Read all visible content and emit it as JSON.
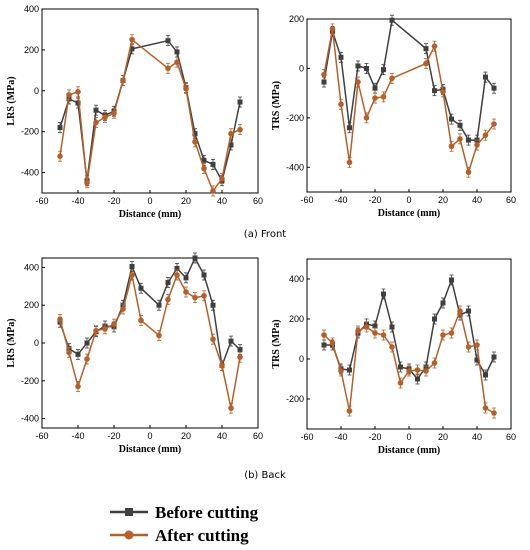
{
  "captions": {
    "front": "(a) Front",
    "back": "(b) Back"
  },
  "legend": {
    "items": [
      {
        "label": "Before cutting",
        "color": "#3f3f3f",
        "marker": "square"
      },
      {
        "label": "After cutting",
        "color": "#b5602a",
        "marker": "circle"
      }
    ]
  },
  "chart_data": [
    {
      "id": "front_lrs",
      "type": "line",
      "xlabel": "Distance (mm)",
      "ylabel": "LRS (MPa)",
      "xlim": [
        -60,
        60
      ],
      "ylim": [
        -500,
        400
      ],
      "xticks": [
        -60,
        -40,
        -20,
        0,
        20,
        40,
        60
      ],
      "yticks": [
        -400,
        -200,
        0,
        200,
        400
      ],
      "series": [
        {
          "name": "Before cutting",
          "color": "#3f3f3f",
          "marker": "square",
          "x": [
            -50,
            -45,
            -40,
            -35,
            -30,
            -25,
            -20,
            -15,
            -10,
            10,
            15,
            20,
            25,
            30,
            35,
            40,
            45,
            50
          ],
          "y": [
            -180,
            -40,
            -60,
            -440,
            -95,
            -120,
            -100,
            50,
            205,
            245,
            190,
            15,
            -210,
            -340,
            -360,
            -440,
            -265,
            -55
          ]
        },
        {
          "name": "After cutting",
          "color": "#b5602a",
          "marker": "circle",
          "x": [
            -50,
            -45,
            -40,
            -35,
            -30,
            -25,
            -20,
            -15,
            -10,
            10,
            15,
            20,
            25,
            30,
            35,
            40,
            45,
            50
          ],
          "y": [
            -320,
            -20,
            -5,
            -450,
            -155,
            -130,
            -110,
            50,
            250,
            110,
            140,
            10,
            -250,
            -380,
            -490,
            -430,
            -210,
            -190
          ]
        }
      ]
    },
    {
      "id": "front_trs",
      "type": "line",
      "xlabel": "Distance (mm)",
      "ylabel": "TRS (MPa)",
      "xlim": [
        -60,
        60
      ],
      "ylim": [
        -500,
        200
      ],
      "xticks": [
        -60,
        -40,
        -20,
        0,
        20,
        40,
        60
      ],
      "yticks": [
        -400,
        -200,
        0,
        200
      ],
      "series": [
        {
          "name": "Before cutting",
          "color": "#3f3f3f",
          "marker": "square",
          "x": [
            -50,
            -45,
            -40,
            -35,
            -30,
            -25,
            -20,
            -15,
            -10,
            10,
            15,
            20,
            25,
            30,
            35,
            40,
            45,
            50
          ],
          "y": [
            -55,
            150,
            45,
            -240,
            10,
            0,
            -80,
            -5,
            195,
            80,
            -90,
            -85,
            -205,
            -230,
            -290,
            -290,
            -35,
            -80
          ]
        },
        {
          "name": "After cutting",
          "color": "#b5602a",
          "marker": "circle",
          "x": [
            -50,
            -45,
            -40,
            -35,
            -30,
            -25,
            -20,
            -15,
            -10,
            10,
            15,
            20,
            25,
            30,
            35,
            40,
            45,
            50
          ],
          "y": [
            -25,
            160,
            -145,
            -380,
            -55,
            -200,
            -120,
            -115,
            -40,
            20,
            90,
            -95,
            -315,
            -285,
            -420,
            -310,
            -270,
            -225
          ]
        }
      ]
    },
    {
      "id": "back_lrs",
      "type": "line",
      "xlabel": "Distance (mm)",
      "ylabel": "LRS (MPa)",
      "xlim": [
        -60,
        60
      ],
      "ylim": [
        -450,
        450
      ],
      "xticks": [
        -60,
        -40,
        -20,
        0,
        20,
        40,
        60
      ],
      "yticks": [
        -400,
        -200,
        0,
        200,
        400
      ],
      "series": [
        {
          "name": "Before cutting",
          "color": "#3f3f3f",
          "marker": "square",
          "x": [
            -50,
            -45,
            -40,
            -35,
            -30,
            -25,
            -20,
            -15,
            -10,
            -5,
            5,
            10,
            15,
            20,
            25,
            30,
            35,
            40,
            45,
            50
          ],
          "y": [
            110,
            -30,
            -60,
            0,
            60,
            90,
            85,
            200,
            405,
            290,
            200,
            320,
            395,
            345,
            450,
            360,
            200,
            -120,
            10,
            -35
          ]
        },
        {
          "name": "After cutting",
          "color": "#b5602a",
          "marker": "circle",
          "x": [
            -50,
            -45,
            -40,
            -35,
            -30,
            -25,
            -20,
            -15,
            -10,
            -5,
            5,
            10,
            15,
            20,
            25,
            30,
            35,
            40,
            45,
            50
          ],
          "y": [
            125,
            -50,
            -230,
            -85,
            65,
            75,
            100,
            180,
            360,
            120,
            40,
            230,
            360,
            270,
            240,
            250,
            20,
            -120,
            -345,
            -75
          ]
        }
      ]
    },
    {
      "id": "back_trs",
      "type": "line",
      "xlabel": "Distance (mm)",
      "ylabel": "TRS (MPa)",
      "xlim": [
        -60,
        60
      ],
      "ylim": [
        -350,
        500
      ],
      "xticks": [
        -60,
        -40,
        -20,
        0,
        20,
        40,
        60
      ],
      "yticks": [
        -200,
        0,
        200,
        400
      ],
      "series": [
        {
          "name": "Before cutting",
          "color": "#3f3f3f",
          "marker": "square",
          "x": [
            -50,
            -45,
            -40,
            -35,
            -30,
            -25,
            -20,
            -15,
            -10,
            -5,
            0,
            5,
            10,
            15,
            20,
            25,
            30,
            35,
            40,
            45,
            50
          ],
          "y": [
            70,
            70,
            -50,
            -55,
            130,
            175,
            165,
            325,
            160,
            -40,
            -50,
            -100,
            -40,
            200,
            280,
            395,
            220,
            240,
            -5,
            -80,
            10
          ]
        },
        {
          "name": "After cutting",
          "color": "#b5602a",
          "marker": "circle",
          "x": [
            -50,
            -45,
            -40,
            -35,
            -30,
            -25,
            -20,
            -15,
            -10,
            -5,
            0,
            5,
            10,
            15,
            20,
            25,
            30,
            35,
            40,
            45,
            50
          ],
          "y": [
            120,
            80,
            -60,
            -260,
            140,
            160,
            130,
            120,
            60,
            -120,
            -60,
            -55,
            -60,
            -20,
            120,
            130,
            240,
            60,
            70,
            -245,
            -270
          ]
        }
      ]
    }
  ]
}
